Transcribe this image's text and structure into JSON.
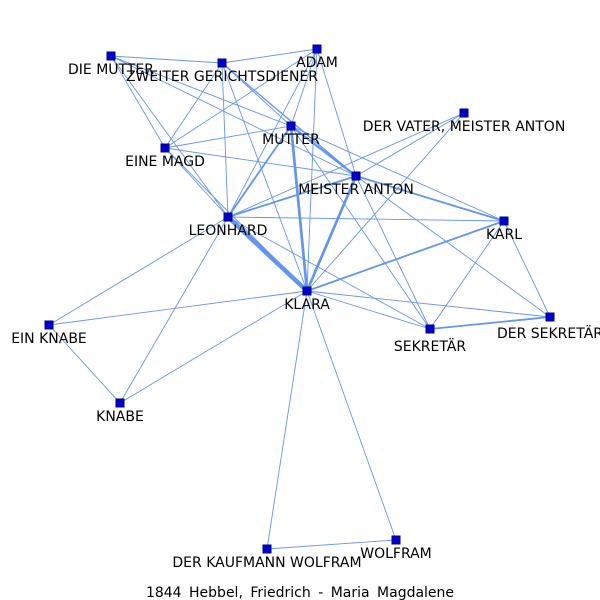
{
  "caption": "1844  Hebbel,  Friedrich  -  Maria  Magdalene",
  "colors": {
    "edge": "#6495ed",
    "node": "#0000cd",
    "node_border": "#00008b",
    "label": "#000000"
  },
  "nodes": [
    {
      "id": "die_mutter",
      "label": "DIE MUTTER"
    },
    {
      "id": "zweiter_gerichtsdiener",
      "label": "ZWEITER GERICHTSDIENER"
    },
    {
      "id": "adam",
      "label": "ADAM"
    },
    {
      "id": "mutter",
      "label": "MUTTER"
    },
    {
      "id": "der_vater",
      "label": "DER VATER, MEISTER ANTON"
    },
    {
      "id": "eine_magd",
      "label": "EINE MAGD"
    },
    {
      "id": "meister_anton",
      "label": "MEISTER ANTON"
    },
    {
      "id": "leonhard",
      "label": "LEONHARD"
    },
    {
      "id": "karl",
      "label": "KARL"
    },
    {
      "id": "klara",
      "label": "KLARA"
    },
    {
      "id": "ein_knabe",
      "label": "EIN KNABE"
    },
    {
      "id": "sekretaer",
      "label": "SEKRETÄR"
    },
    {
      "id": "der_sekretaer",
      "label": "DER SEKRETÄR"
    },
    {
      "id": "knabe",
      "label": "KNABE"
    },
    {
      "id": "wolfram",
      "label": "WOLFRAM"
    },
    {
      "id": "der_kaufmann_wolfram",
      "label": "DER KAUFMANN WOLFRAM"
    }
  ],
  "edges": [
    [
      "die_mutter",
      "mutter",
      1
    ],
    [
      "die_mutter",
      "meister_anton",
      1
    ],
    [
      "die_mutter",
      "leonhard",
      1
    ],
    [
      "die_mutter",
      "eine_magd",
      1
    ],
    [
      "die_mutter",
      "zweiter_gerichtsdiener",
      1
    ],
    [
      "zweiter_gerichtsdiener",
      "adam",
      1
    ],
    [
      "zweiter_gerichtsdiener",
      "mutter",
      1
    ],
    [
      "zweiter_gerichtsdiener",
      "meister_anton",
      1.5
    ],
    [
      "zweiter_gerichtsdiener",
      "leonhard",
      1
    ],
    [
      "zweiter_gerichtsdiener",
      "eine_magd",
      1
    ],
    [
      "zweiter_gerichtsdiener",
      "klara",
      1
    ],
    [
      "adam",
      "mutter",
      1
    ],
    [
      "adam",
      "meister_anton",
      1
    ],
    [
      "adam",
      "leonhard",
      1
    ],
    [
      "adam",
      "eine_magd",
      1
    ],
    [
      "adam",
      "klara",
      1
    ],
    [
      "mutter",
      "meister_anton",
      2.5
    ],
    [
      "mutter",
      "leonhard",
      2
    ],
    [
      "mutter",
      "klara",
      3
    ],
    [
      "mutter",
      "karl",
      1
    ],
    [
      "mutter",
      "eine_magd",
      1
    ],
    [
      "mutter",
      "sekretaer",
      1
    ],
    [
      "der_vater",
      "leonhard",
      1
    ],
    [
      "der_vater",
      "klara",
      1
    ],
    [
      "der_vater",
      "meister_anton",
      1
    ],
    [
      "eine_magd",
      "leonhard",
      1
    ],
    [
      "eine_magd",
      "meister_anton",
      1
    ],
    [
      "eine_magd",
      "klara",
      1
    ],
    [
      "meister_anton",
      "leonhard",
      2
    ],
    [
      "meister_anton",
      "karl",
      2
    ],
    [
      "meister_anton",
      "klara",
      3
    ],
    [
      "meister_anton",
      "sekretaer",
      1
    ],
    [
      "meister_anton",
      "der_sekretaer",
      1
    ],
    [
      "leonhard",
      "klara",
      5
    ],
    [
      "leonhard",
      "karl",
      1
    ],
    [
      "leonhard",
      "ein_knabe",
      1
    ],
    [
      "leonhard",
      "knabe",
      1
    ],
    [
      "leonhard",
      "sekretaer",
      1
    ],
    [
      "karl",
      "klara",
      2
    ],
    [
      "karl",
      "sekretaer",
      1
    ],
    [
      "karl",
      "der_sekretaer",
      1
    ],
    [
      "klara",
      "sekretaer",
      1
    ],
    [
      "klara",
      "der_sekretaer",
      1
    ],
    [
      "klara",
      "ein_knabe",
      1
    ],
    [
      "klara",
      "knabe",
      1
    ],
    [
      "klara",
      "wolfram",
      1
    ],
    [
      "klara",
      "der_kaufmann_wolfram",
      1
    ],
    [
      "sekretaer",
      "der_sekretaer",
      2
    ],
    [
      "ein_knabe",
      "knabe",
      1
    ],
    [
      "wolfram",
      "der_kaufmann_wolfram",
      1
    ]
  ]
}
